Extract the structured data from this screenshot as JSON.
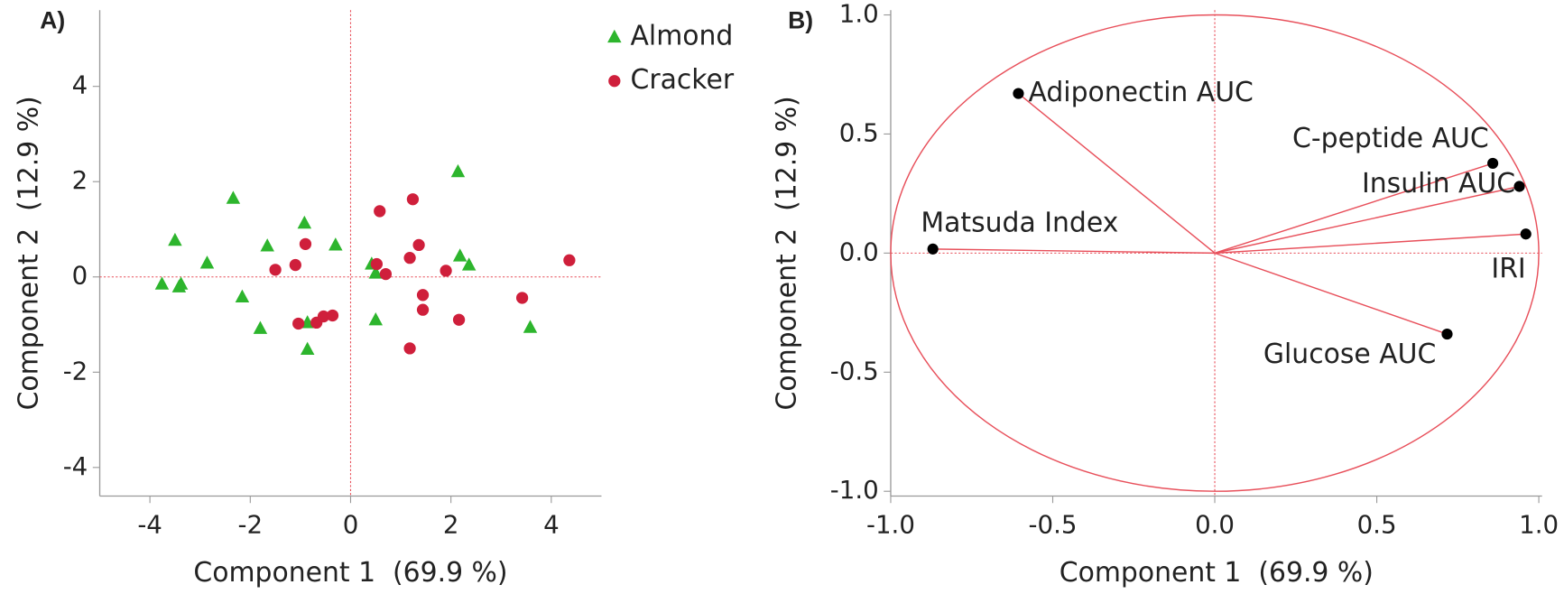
{
  "chart_data": [
    {
      "type": "scatter",
      "panel_label": "A)",
      "x_label": "Component 1  (69.9 %)",
      "y_label": "Component 2  (12.9 %)",
      "xlim": [
        -5,
        5
      ],
      "ylim": [
        -4.6,
        5.6
      ],
      "xticks": [
        -4,
        -2,
        0,
        2,
        4
      ],
      "yticks": [
        -4,
        -2,
        0,
        2,
        4
      ],
      "legend_position": "outside-right",
      "series": [
        {
          "name": "Almond",
          "color": "#2db52d",
          "marker": "triangle",
          "x": [
            -3.76,
            -3.5,
            -3.42,
            -3.38,
            -2.86,
            -2.34,
            -2.16,
            -1.8,
            -1.66,
            -0.92,
            -0.86,
            -0.86,
            -0.3,
            0.42,
            0.5,
            0.5,
            2.14,
            2.18,
            2.36,
            3.58
          ],
          "values": [
            -0.15,
            0.77,
            -0.21,
            -0.15,
            0.29,
            1.65,
            -0.42,
            -1.08,
            0.65,
            1.13,
            -0.96,
            -1.52,
            0.67,
            0.27,
            0.08,
            -0.9,
            2.21,
            0.44,
            0.25,
            -1.06
          ]
        },
        {
          "name": "Cracker",
          "color": "#cf1f3b",
          "marker": "circle",
          "x": [
            -1.5,
            -1.1,
            -0.9,
            -1.04,
            -0.68,
            -0.54,
            -0.36,
            0.52,
            0.58,
            0.7,
            1.24,
            1.18,
            1.36,
            1.44,
            1.44,
            1.18,
            1.9,
            2.16,
            3.42,
            4.36
          ],
          "values": [
            0.15,
            0.25,
            0.69,
            -0.98,
            -0.96,
            -0.83,
            -0.81,
            0.27,
            1.38,
            0.06,
            1.63,
            0.4,
            0.67,
            -0.38,
            -0.69,
            -1.5,
            0.13,
            -0.9,
            -0.44,
            0.35
          ]
        }
      ]
    },
    {
      "type": "biplot",
      "panel_label": "B)",
      "x_label": "Component 1  (69.9 %)",
      "y_label": "Component 2  (12.9 %)",
      "xlim": [
        -1.0,
        1.01
      ],
      "ylim": [
        -1.02,
        1.02
      ],
      "xticks": [
        {
          "value": -1,
          "label": "-1.0"
        },
        -0.5,
        {
          "value": 0,
          "label": "0.0"
        },
        0.5,
        {
          "value": 1,
          "label": "1.0"
        }
      ],
      "yticks": [
        {
          "value": -1,
          "label": "-1.0"
        },
        -0.5,
        {
          "value": 0,
          "label": "0.0"
        },
        0.5,
        {
          "value": 1,
          "label": "1.0"
        }
      ],
      "color": "#e8505b",
      "labels": [
        "Adiponectin AUC",
        "C-peptide AUC",
        "Insulin AUC",
        "IRI",
        "Matsuda Index",
        "Glucose AUC"
      ],
      "x": [
        -0.606,
        0.858,
        0.94,
        0.96,
        -0.87,
        0.717
      ],
      "values": [
        0.67,
        0.377,
        0.28,
        0.08,
        0.017,
        -0.34
      ]
    }
  ]
}
